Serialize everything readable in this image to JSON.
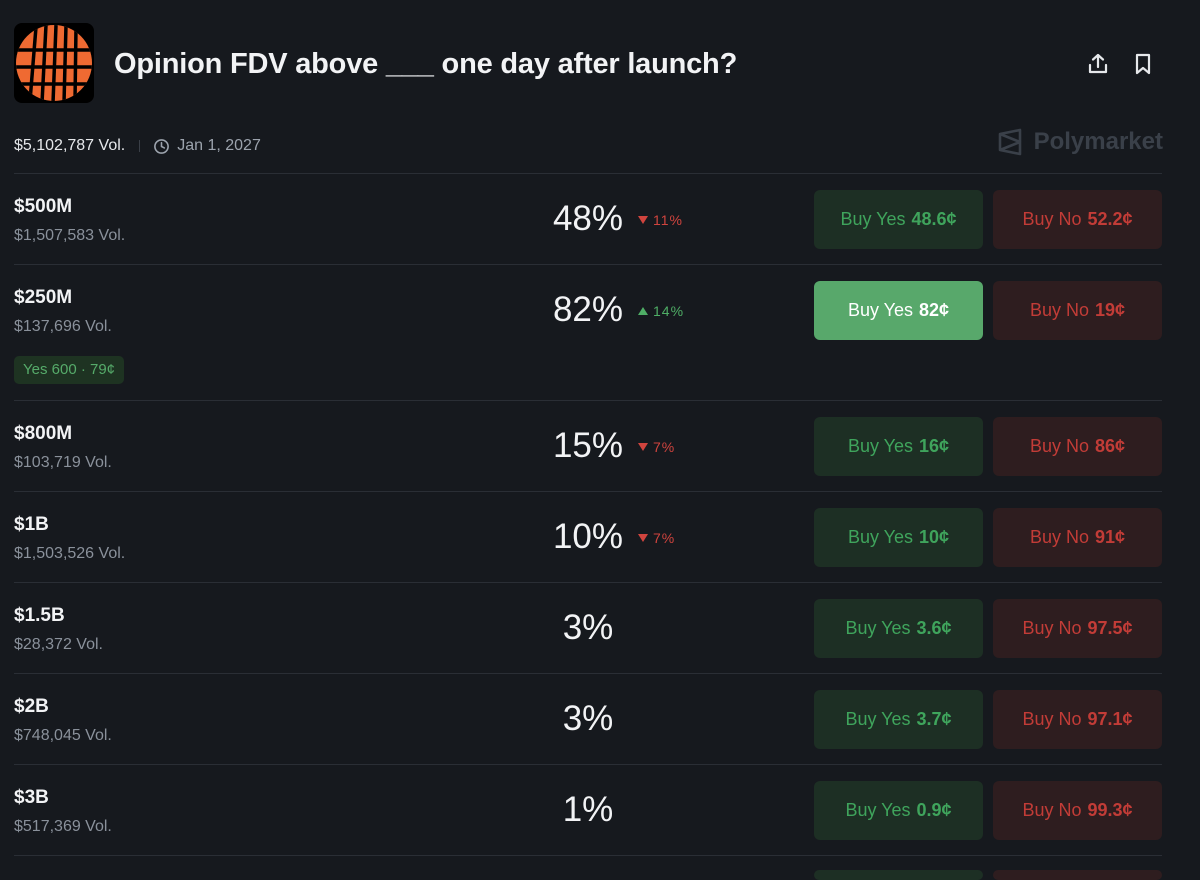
{
  "market": {
    "title": "Opinion FDV above ___ one day after launch?",
    "total_volume": "$5,102,787 Vol.",
    "end_date": "Jan 1, 2027",
    "brand": "Polymarket"
  },
  "icons": {
    "share": "share-icon",
    "bookmark": "bookmark-icon",
    "clock": "clock-icon",
    "brand": "polymarket-logo-icon"
  },
  "colors": {
    "logo_orange": "#ef6a32",
    "yes_green": "#3fa45c",
    "no_red": "#c23c37",
    "active_yes": "#58a86b"
  },
  "outcomes": [
    {
      "name": "$500M",
      "volume": "$1,507,583 Vol.",
      "percent": "48%",
      "change": "11%",
      "change_dir": "down",
      "yes_label": "Buy Yes",
      "yes_price": "48.6¢",
      "no_label": "Buy No",
      "no_price": "52.2¢"
    },
    {
      "name": "$250M",
      "volume": "$137,696 Vol.",
      "percent": "82%",
      "change": "14%",
      "change_dir": "up",
      "yes_label": "Buy Yes",
      "yes_price": "82¢",
      "no_label": "Buy No",
      "no_price": "19¢",
      "position": "Yes 600 · 79¢",
      "yes_active": true
    },
    {
      "name": "$800M",
      "volume": "$103,719 Vol.",
      "percent": "15%",
      "change": "7%",
      "change_dir": "down",
      "yes_label": "Buy Yes",
      "yes_price": "16¢",
      "no_label": "Buy No",
      "no_price": "86¢"
    },
    {
      "name": "$1B",
      "volume": "$1,503,526 Vol.",
      "percent": "10%",
      "change": "7%",
      "change_dir": "down",
      "yes_label": "Buy Yes",
      "yes_price": "10¢",
      "no_label": "Buy No",
      "no_price": "91¢"
    },
    {
      "name": "$1.5B",
      "volume": "$28,372 Vol.",
      "percent": "3%",
      "yes_label": "Buy Yes",
      "yes_price": "3.6¢",
      "no_label": "Buy No",
      "no_price": "97.5¢"
    },
    {
      "name": "$2B",
      "volume": "$748,045 Vol.",
      "percent": "3%",
      "yes_label": "Buy Yes",
      "yes_price": "3.7¢",
      "no_label": "Buy No",
      "no_price": "97.1¢"
    },
    {
      "name": "$3B",
      "volume": "$517,369 Vol.",
      "percent": "1%",
      "yes_label": "Buy Yes",
      "yes_price": "0.9¢",
      "no_label": "Buy No",
      "no_price": "99.3¢"
    }
  ]
}
